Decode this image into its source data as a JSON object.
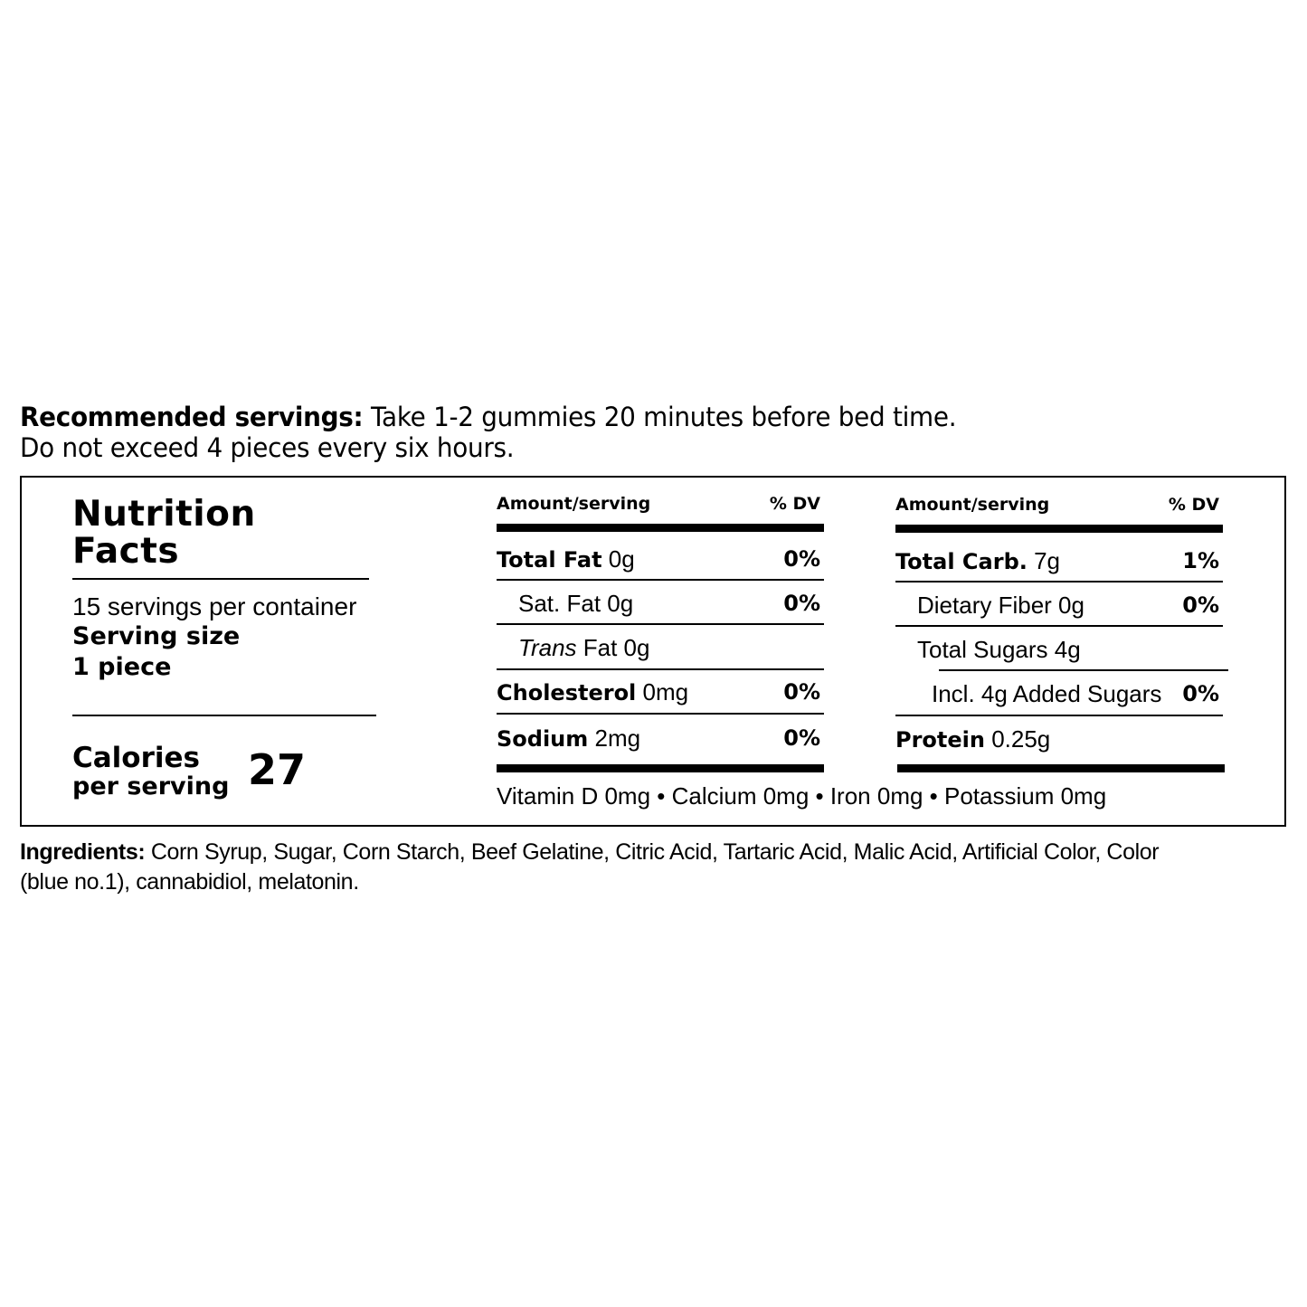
{
  "recommended": {
    "label": "Recommended servings:",
    "line1": " Take 1-2 gummies 20 minutes before bed time.",
    "line2": "Do not exceed 4 pieces every six hours."
  },
  "label": {
    "title_line1": "Nutrition",
    "title_line2": "Facts",
    "servings_per_container": "15 servings per container",
    "serving_size_label": "Serving size",
    "serving_size_value": "1 piece",
    "calories_label": "Calories",
    "per_serving": "per serving",
    "calories_value": "27"
  },
  "columns": [
    {
      "header_amount": "Amount/serving",
      "header_dv": "% DV",
      "rows": [
        {
          "name": "Total Fat",
          "amount": " 0g",
          "dv": "0%"
        },
        {
          "name": "Sat. Fat 0g",
          "dv": "0%"
        },
        {
          "name_italic": "Trans",
          "amount": " Fat 0g",
          "dv": ""
        },
        {
          "name": "Cholesterol",
          "amount": " 0mg",
          "dv": "0%"
        },
        {
          "name": "Sodium",
          "amount": " 2mg",
          "dv": "0%"
        }
      ]
    },
    {
      "header_amount": "Amount/serving",
      "header_dv": "% DV",
      "rows": [
        {
          "name": "Total Carb.",
          "amount": " 7g",
          "dv": "1%"
        },
        {
          "name": "Dietary Fiber 0g",
          "dv": "0%"
        },
        {
          "name": "Total Sugars 4g",
          "dv": ""
        },
        {
          "name": "Incl. 4g Added Sugars",
          "dv": "0%"
        },
        {
          "name": "Protein",
          "amount": " 0.25g",
          "dv": ""
        }
      ]
    }
  ],
  "micronutrients": "Vitamin D 0mg • Calcium 0mg • Iron 0mg • Potassium 0mg",
  "ingredients": {
    "label": "Ingredients:",
    "line1": " Corn Syrup, Sugar, Corn Starch, Beef Gelatine, Citric Acid, Tartaric Acid, Malic Acid, Artificial Color, Color",
    "line2": "(blue no.1), cannabidiol, melatonin."
  }
}
